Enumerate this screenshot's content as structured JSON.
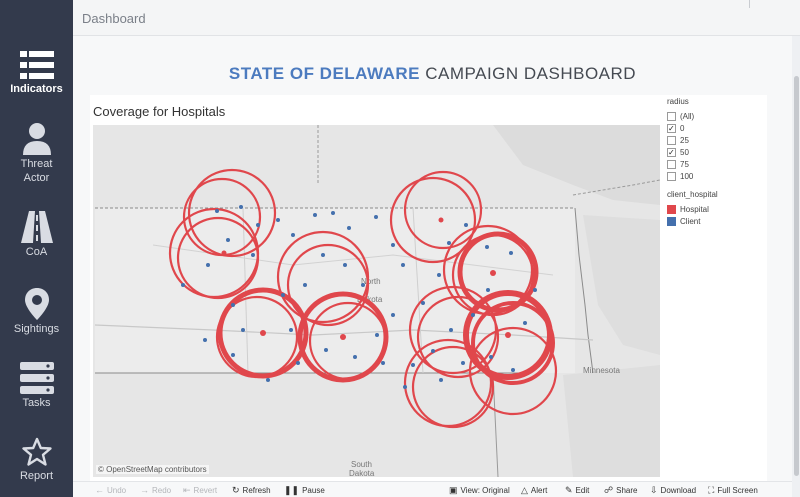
{
  "sidebar": {
    "items": [
      {
        "label": "Indicators",
        "icon": "list-icon",
        "active": true
      },
      {
        "label": "Threat Actor",
        "icon": "person-icon",
        "active": false
      },
      {
        "label": "CoA",
        "icon": "road-icon",
        "active": false
      },
      {
        "label": "Sightings",
        "icon": "map-pin-icon",
        "active": false
      },
      {
        "label": "Tasks",
        "icon": "server-icon",
        "active": false
      },
      {
        "label": "Report",
        "icon": "star-icon",
        "active": false
      }
    ]
  },
  "header": {
    "breadcrumb": "Dashboard"
  },
  "dashboard": {
    "title_accent": "STATE OF DELAWARE",
    "title_rest": "CAMPAIGN DASHBOARD"
  },
  "viz": {
    "title": "Coverage for Hospitals",
    "map_labels": {
      "north": "North",
      "dakota": "Dakota",
      "minnesota": "Minnesota",
      "south": "South",
      "dakota2": "Dakota"
    },
    "credit": "© OpenStreetMap contributors"
  },
  "legend": {
    "radius_title": "radius",
    "radius_options": [
      {
        "label": "(All)",
        "checked": false
      },
      {
        "label": "0",
        "checked": true
      },
      {
        "label": "25",
        "checked": false
      },
      {
        "label": "50",
        "checked": true
      },
      {
        "label": "75",
        "checked": false
      },
      {
        "label": "100",
        "checked": false
      }
    ],
    "color_title": "client_hospital",
    "color_items": [
      {
        "label": "Hospital",
        "color": "#e0474c"
      },
      {
        "label": "Client",
        "color": "#4470ad"
      }
    ]
  },
  "toolbar": {
    "undo": "Undo",
    "redo": "Redo",
    "revert": "Revert",
    "refresh": "Refresh",
    "pause": "Pause",
    "view": "View: Original",
    "alert": "Alert",
    "edit": "Edit",
    "share": "Share",
    "download": "Download",
    "fullscreen": "Full Screen"
  },
  "colors": {
    "sidebar_bg": "#333a4c",
    "accent": "#4c7bbf",
    "hospital": "#e0474c",
    "client": "#4470ad"
  }
}
